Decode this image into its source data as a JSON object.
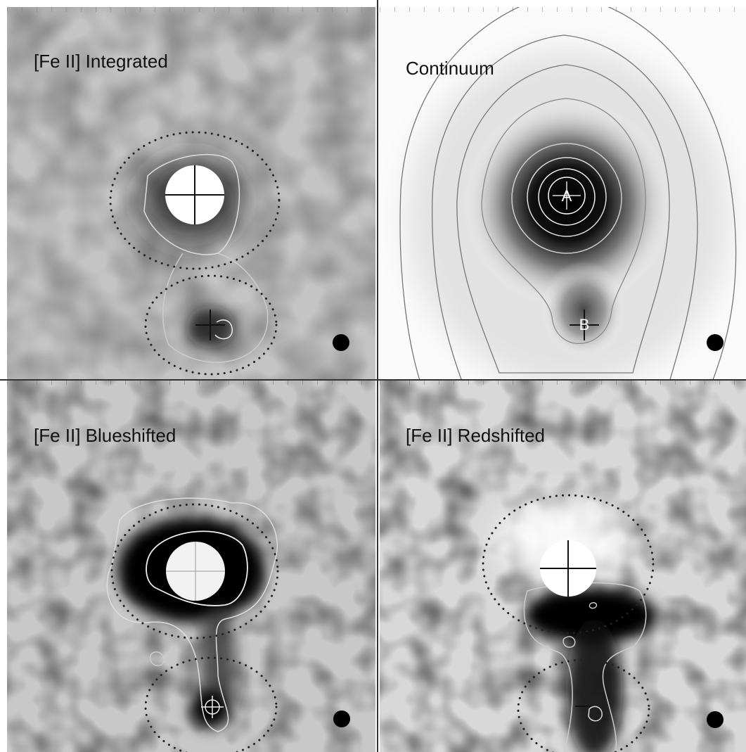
{
  "panels": [
    {
      "title": "[Fe II] Integrated"
    },
    {
      "title": "Continuum",
      "sources": [
        "A",
        "B"
      ]
    },
    {
      "title": "[Fe II] Blueshifted"
    },
    {
      "title": "[Fe II] Redshifted"
    }
  ]
}
